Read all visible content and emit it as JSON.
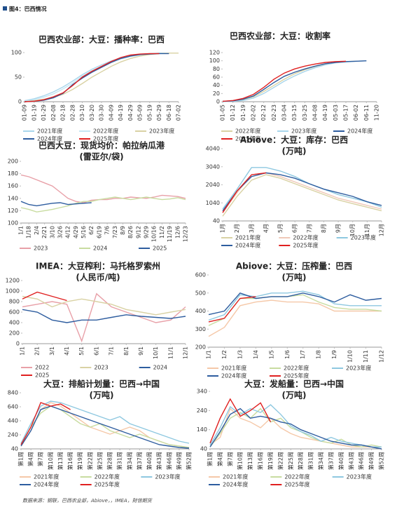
{
  "header": "图4：巴西情况",
  "footer": "数据来源：钢联，巴西农业部，Abiove，，IMEA，財信期货",
  "chart_data": [
    {
      "type": "line",
      "title": "巴西农业部：大豆：播种率：巴西",
      "categories": [
        "01-09",
        "01-19",
        "01-29",
        "02-08",
        "02-18",
        "02-28",
        "03-10",
        "03-20",
        "03-30",
        "04-09",
        "04-19",
        "04-29",
        "05-09",
        "05-19",
        "05-29",
        "06-18",
        "07-02"
      ],
      "ylim": [
        0,
        100
      ],
      "yticks": [
        0,
        50,
        100
      ],
      "series": [
        {
          "name": "2021年度",
          "color": "#a9d6ec",
          "values": [
            2,
            6,
            12,
            20,
            30,
            42,
            55,
            66,
            75,
            83,
            89,
            93,
            96,
            98,
            99,
            99,
            null
          ]
        },
        {
          "name": "2022年度",
          "color": "#c6e6f3",
          "values": [
            1,
            4,
            9,
            16,
            26,
            38,
            52,
            63,
            72,
            80,
            87,
            92,
            95,
            97,
            98,
            99,
            null
          ]
        },
        {
          "name": "2023年度",
          "color": "#d9d2a4",
          "values": [
            0,
            2,
            5,
            9,
            15,
            25,
            37,
            50,
            61,
            72,
            81,
            88,
            93,
            96,
            98,
            99,
            99
          ]
        },
        {
          "name": "2024年度",
          "color": "#2e5d9f",
          "values": [
            0,
            1,
            3,
            8,
            17,
            35,
            48,
            60,
            70,
            80,
            88,
            93,
            96,
            97,
            98,
            98,
            null
          ]
        },
        {
          "name": "2025年度",
          "color": "#e02020",
          "values": [
            0,
            1,
            4,
            10,
            18,
            33,
            50,
            62,
            72,
            82,
            90,
            95,
            97,
            98,
            98,
            null,
            null
          ]
        }
      ]
    },
    {
      "type": "line",
      "title": "巴西农业部：大豆：收割率",
      "categories": [
        "01-05",
        "01-12",
        "01-19",
        "02-02",
        "02-12",
        "02-23",
        "03-04",
        "03-15",
        "03-25",
        "04-08",
        "04-19",
        "05-03",
        "05-17",
        "06-02",
        "06-11",
        "11-20"
      ],
      "ylim": [
        0,
        120
      ],
      "yticks": [
        0,
        20,
        40,
        60,
        80,
        100,
        120
      ],
      "series": [
        {
          "name": "2022年度",
          "color": "#d9d2a4",
          "values": [
            1,
            2,
            5,
            12,
            25,
            40,
            55,
            68,
            78,
            86,
            92,
            96,
            98,
            99,
            null,
            null
          ]
        },
        {
          "name": "2023年度",
          "color": "#a9d6ec",
          "values": [
            0,
            1,
            3,
            9,
            20,
            35,
            50,
            63,
            74,
            83,
            90,
            95,
            97,
            99,
            100,
            null
          ]
        },
        {
          "name": "2024年度",
          "color": "#2e5d9f",
          "values": [
            1,
            2,
            6,
            14,
            30,
            47,
            62,
            72,
            80,
            87,
            93,
            96,
            98,
            99,
            100,
            null
          ]
        },
        {
          "name": "2025年度",
          "color": "#e02020",
          "values": [
            1,
            3,
            8,
            18,
            35,
            55,
            70,
            80,
            87,
            92,
            96,
            98,
            99,
            null,
            null,
            null
          ]
        }
      ]
    },
    {
      "type": "line",
      "title": "巴西大豆：现货均价：帕拉纳瓜港",
      "subtitle": "(雷亚尔/袋)",
      "categories": [
        "1/1",
        "1/18",
        "2/4",
        "2/21",
        "3/10",
        "3/26",
        "4/12",
        "4/29",
        "5/16",
        "6/2",
        "6/19",
        "7/6",
        "7/23",
        "8/9",
        "8/26",
        "9/12",
        "9/29",
        "10/16",
        "11/2",
        "11/19",
        "12/6",
        "12/23"
      ],
      "ylim": [
        100,
        200
      ],
      "yticks": [
        100,
        120,
        140,
        160,
        180,
        200
      ],
      "series": [
        {
          "name": "2023",
          "color": "#e8a0a8",
          "values": [
            178,
            175,
            170,
            165,
            160,
            150,
            140,
            135,
            133,
            137,
            138,
            138,
            140,
            140,
            142,
            141,
            140,
            142,
            145,
            144,
            143,
            140
          ]
        },
        {
          "name": "2024",
          "color": "#c8dca0",
          "values": [
            125,
            122,
            118,
            120,
            122,
            125,
            128,
            132,
            135,
            135,
            138,
            140,
            142,
            140,
            138,
            140,
            142,
            140,
            138,
            139,
            141,
            138
          ]
        },
        {
          "name": "2025",
          "color": "#2e5d9f",
          "values": [
            135,
            130,
            128,
            130,
            132,
            133,
            130,
            131,
            132,
            133,
            null,
            null,
            null,
            null,
            null,
            null,
            null,
            null,
            null,
            null,
            null,
            null
          ]
        }
      ]
    },
    {
      "type": "line",
      "title": "Abiove：大豆：库存：巴西",
      "subtitle": "(万吨)",
      "categories": [
        "1月",
        "2月",
        "3月",
        "4月",
        "5月",
        "6月",
        "7月",
        "8月",
        "9月",
        "10月",
        "11月",
        "12月"
      ],
      "ylim": [
        40,
        4040
      ],
      "yticks": [
        40,
        1040,
        2040,
        3040,
        4040
      ],
      "series": [
        {
          "name": "2021年度",
          "color": "#d9d2a4",
          "values": [
            300,
            1400,
            2300,
            2600,
            2400,
            2100,
            1800,
            1500,
            1200,
            1000,
            800,
            600
          ]
        },
        {
          "name": "2022年度",
          "color": "#f0c8b8",
          "values": [
            500,
            1600,
            2600,
            2700,
            2500,
            2200,
            1900,
            1600,
            1300,
            1100,
            900,
            700
          ]
        },
        {
          "name": "2023年度",
          "color": "#8ec8e0",
          "values": [
            700,
            1800,
            3000,
            3000,
            2800,
            2500,
            2100,
            1800,
            1500,
            1300,
            1100,
            800
          ]
        },
        {
          "name": "2024年度",
          "color": "#2e5d9f",
          "values": [
            600,
            1700,
            2500,
            2700,
            2600,
            2400,
            2100,
            1800,
            1600,
            1400,
            1100,
            900
          ]
        },
        {
          "name": "2025年度",
          "color": "#e02020",
          "values": [
            500,
            1700,
            2600,
            2700,
            null,
            null,
            null,
            null,
            null,
            null,
            null,
            null
          ]
        }
      ]
    },
    {
      "type": "line",
      "title": "IMEA：大豆榨利：马托格罗索州",
      "subtitle": "(人民币/吨)",
      "categories": [
        "1/1",
        "2/1",
        "3/1",
        "4/1",
        "5/1",
        "6/1",
        "7/1",
        "8/1",
        "9/1",
        "10/1",
        "11/1",
        "12/1"
      ],
      "ylim": [
        0,
        1200
      ],
      "yticks": [
        0,
        200,
        400,
        600,
        800,
        1000,
        1200
      ],
      "series": [
        {
          "name": "2022",
          "color": "#e8a0a8",
          "values": [
            700,
            750,
            800,
            750,
            50,
            950,
            700,
            600,
            500,
            400,
            450,
            700
          ]
        },
        {
          "name": "2023",
          "color": "#d9d2a4",
          "values": [
            900,
            850,
            700,
            800,
            850,
            800,
            750,
            650,
            600,
            550,
            600,
            650
          ]
        },
        {
          "name": "2024",
          "color": "#2e5d9f",
          "values": [
            650,
            600,
            450,
            400,
            450,
            450,
            500,
            550,
            520,
            500,
            480,
            520
          ]
        },
        {
          "name": "2025",
          "color": "#e02020",
          "values": [
            850,
            980,
            900,
            820,
            null,
            null,
            null,
            null,
            null,
            null,
            null,
            null
          ]
        }
      ]
    },
    {
      "type": "line",
      "title": "Abiove：大豆：压榨量：巴西",
      "subtitle": "(万吨)",
      "categories": [
        "1/1",
        "1/2",
        "1/3",
        "1/4",
        "1/5",
        "1/6",
        "1/7",
        "1/8",
        "1/9",
        "1/10",
        "1/11",
        "1/12"
      ],
      "ylim": [
        200,
        600
      ],
      "yticks": [
        200,
        300,
        400,
        500,
        600
      ],
      "series": [
        {
          "name": "2021年度",
          "color": "#f5c8a8",
          "values": [
            260,
            310,
            430,
            450,
            460,
            450,
            450,
            440,
            400,
            400,
            400,
            400
          ]
        },
        {
          "name": "2022年度",
          "color": "#c8dca0",
          "values": [
            320,
            360,
            470,
            470,
            480,
            480,
            490,
            450,
            420,
            410,
            410,
            400
          ]
        },
        {
          "name": "2023年度",
          "color": "#8ec8e0",
          "values": [
            350,
            380,
            490,
            480,
            500,
            500,
            510,
            490,
            440,
            430,
            430,
            430
          ]
        },
        {
          "name": "2024年度",
          "color": "#2e5d9f",
          "values": [
            380,
            400,
            500,
            470,
            480,
            480,
            500,
            480,
            450,
            490,
            460,
            470
          ]
        },
        {
          "name": "2025年度",
          "color": "#e02020",
          "values": [
            340,
            360,
            470,
            480,
            null,
            null,
            null,
            null,
            null,
            null,
            null,
            null
          ]
        }
      ]
    },
    {
      "type": "line",
      "title": "大豆：排船计划量：巴西→中国",
      "subtitle": "(万吨)",
      "categories": [
        "第1周",
        "第4周",
        "第7周",
        "第10周",
        "第13周",
        "第16周",
        "第19周",
        "第22周",
        "第25周",
        "第28周",
        "第31周",
        "第34周",
        "第37周",
        "第40周",
        "第43周",
        "第46周",
        "第49周",
        "第52周"
      ],
      "ylim": [
        40,
        840
      ],
      "yticks": [
        40,
        240,
        440,
        640,
        840
      ],
      "series": [
        {
          "name": "2021年度",
          "color": "#f5c8a8",
          "values": [
            80,
            300,
            600,
            700,
            650,
            550,
            450,
            350,
            300,
            250,
            300,
            350,
            300,
            200,
            150,
            100,
            80,
            60
          ]
        },
        {
          "name": "2022年度",
          "color": "#c8dca0",
          "values": [
            100,
            350,
            550,
            650,
            600,
            500,
            400,
            350,
            400,
            300,
            250,
            200,
            250,
            200,
            150,
            100,
            80,
            60
          ]
        },
        {
          "name": "2023年度",
          "color": "#8ec8e0",
          "values": [
            120,
            400,
            650,
            720,
            700,
            650,
            600,
            550,
            500,
            450,
            500,
            400,
            350,
            300,
            250,
            200,
            150,
            120
          ]
        },
        {
          "name": "2024年度",
          "color": "#2e5d9f",
          "values": [
            80,
            300,
            600,
            650,
            600,
            550,
            500,
            450,
            400,
            350,
            300,
            250,
            200,
            150,
            100,
            80,
            60,
            50
          ]
        },
        {
          "name": "2025年度",
          "color": "#e02020",
          "values": [
            100,
            350,
            700,
            650,
            680,
            600,
            null,
            null,
            null,
            null,
            null,
            null,
            null,
            null,
            null,
            null,
            null,
            null
          ]
        }
      ]
    },
    {
      "type": "line",
      "title": "大豆：发船量：巴西→中国",
      "subtitle": "(万吨)",
      "categories": [
        "第1周",
        "第4周",
        "第7周",
        "第10周",
        "第13周",
        "第16周",
        "第19周",
        "第22周",
        "第25周",
        "第28周",
        "第31周",
        "第34周",
        "第37周",
        "第40周",
        "第43周",
        "第46周",
        "第49周",
        "第52周"
      ],
      "ylim": [
        40,
        340
      ],
      "yticks": [
        40,
        140,
        240,
        340
      ],
      "series": [
        {
          "name": "2021年度",
          "color": "#f5c8a8",
          "values": [
            60,
            100,
            250,
            200,
            180,
            150,
            200,
            150,
            120,
            100,
            90,
            80,
            70,
            60,
            50,
            50,
            50,
            40
          ]
        },
        {
          "name": "2022年度",
          "color": "#c8dca0",
          "values": [
            50,
            120,
            200,
            230,
            200,
            250,
            180,
            200,
            150,
            130,
            100,
            80,
            70,
            90,
            60,
            50,
            60,
            50
          ]
        },
        {
          "name": "2023年度",
          "color": "#8ec8e0",
          "values": [
            60,
            150,
            260,
            220,
            250,
            230,
            270,
            220,
            160,
            130,
            110,
            80,
            100,
            80,
            70,
            60,
            50,
            50
          ]
        },
        {
          "name": "2024年度",
          "color": "#2e5d9f",
          "values": [
            50,
            130,
            220,
            250,
            200,
            210,
            200,
            180,
            170,
            140,
            120,
            100,
            80,
            70,
            60,
            60,
            50,
            40
          ]
        },
        {
          "name": "2025年度",
          "color": "#e02020",
          "values": [
            70,
            200,
            300,
            210,
            240,
            280,
            180,
            null,
            null,
            null,
            null,
            null,
            null,
            null,
            null,
            null,
            null,
            null
          ]
        }
      ]
    }
  ]
}
